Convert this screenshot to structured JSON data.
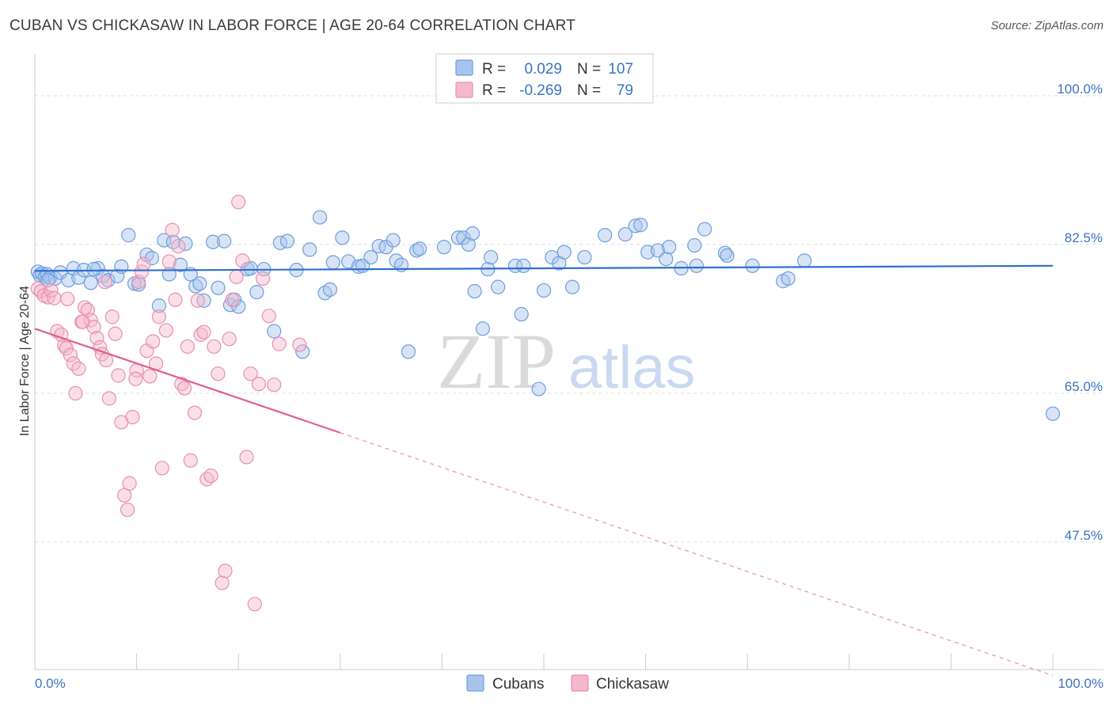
{
  "header": {
    "title": "CUBAN VS CHICKASAW IN LABOR FORCE | AGE 20-64 CORRELATION CHART",
    "source": "Source: ZipAtlas.com"
  },
  "watermark": {
    "zip": "ZIP",
    "atlas": "atlas"
  },
  "legend": {
    "r_label": "R =",
    "n_label": "N =",
    "rows": [
      {
        "r": "0.029",
        "n": "107",
        "color": "#a8c4ec"
      },
      {
        "r": "-0.269",
        "n": "79",
        "color": "#f5b8cb"
      }
    ]
  },
  "chart_data": {
    "type": "scatter",
    "ylabel": "In Labor Force | Age 20-64",
    "xlim": [
      0,
      100
    ],
    "ylim": [
      32.5,
      104
    ],
    "x_tick_labels": [
      "0.0%",
      "100.0%"
    ],
    "y_ticks": [
      {
        "value": 100.0,
        "label": "100.0%"
      },
      {
        "value": 82.5,
        "label": "82.5%"
      },
      {
        "value": 65.0,
        "label": "65.0%"
      },
      {
        "value": 47.5,
        "label": "47.5%"
      }
    ],
    "series": [
      {
        "name": "Cubans",
        "color": "#6c9ee0",
        "fill": "#a8c4ec",
        "trend": {
          "x0": 0,
          "y0": 79.4,
          "x1": 100,
          "y1": 80.0,
          "dashed_from": null
        },
        "points": [
          [
            0.3,
            79.3
          ],
          [
            0.5,
            78.9
          ],
          [
            0.7,
            79.1
          ],
          [
            1.0,
            78.7
          ],
          [
            1.2,
            79.0
          ],
          [
            1.5,
            78.6
          ],
          [
            2.0,
            78.5
          ],
          [
            2.5,
            79.2
          ],
          [
            3.3,
            78.3
          ],
          [
            3.8,
            79.7
          ],
          [
            4.3,
            78.6
          ],
          [
            4.8,
            79.5
          ],
          [
            5.5,
            78.0
          ],
          [
            6.2,
            79.7
          ],
          [
            6.7,
            78.8
          ],
          [
            7.2,
            78.3
          ],
          [
            8.1,
            78.8
          ],
          [
            8.5,
            79.9
          ],
          [
            9.2,
            83.6
          ],
          [
            9.8,
            77.9
          ],
          [
            10.2,
            77.8
          ],
          [
            11.0,
            81.3
          ],
          [
            11.5,
            80.9
          ],
          [
            12.2,
            75.3
          ],
          [
            12.7,
            83.0
          ],
          [
            13.2,
            79.0
          ],
          [
            13.6,
            82.8
          ],
          [
            14.3,
            80.1
          ],
          [
            14.8,
            82.6
          ],
          [
            15.3,
            79.0
          ],
          [
            15.8,
            77.6
          ],
          [
            16.2,
            77.9
          ],
          [
            16.6,
            75.9
          ],
          [
            17.5,
            82.8
          ],
          [
            18.0,
            77.4
          ],
          [
            18.6,
            82.9
          ],
          [
            19.2,
            75.4
          ],
          [
            19.6,
            76.0
          ],
          [
            20.0,
            75.2
          ],
          [
            20.9,
            79.6
          ],
          [
            21.2,
            79.7
          ],
          [
            21.8,
            76.9
          ],
          [
            22.5,
            79.6
          ],
          [
            23.5,
            72.3
          ],
          [
            24.1,
            82.7
          ],
          [
            24.8,
            82.9
          ],
          [
            25.7,
            79.5
          ],
          [
            26.3,
            69.9
          ],
          [
            27.0,
            81.9
          ],
          [
            28.0,
            85.7
          ],
          [
            28.5,
            76.8
          ],
          [
            29.0,
            77.2
          ],
          [
            29.3,
            80.4
          ],
          [
            30.2,
            83.3
          ],
          [
            30.8,
            80.5
          ],
          [
            31.8,
            79.9
          ],
          [
            32.2,
            80.0
          ],
          [
            33.0,
            81.0
          ],
          [
            33.8,
            82.3
          ],
          [
            34.5,
            82.2
          ],
          [
            35.2,
            83.0
          ],
          [
            35.5,
            80.6
          ],
          [
            36.0,
            80.1
          ],
          [
            36.7,
            69.9
          ],
          [
            37.5,
            81.8
          ],
          [
            37.8,
            82.0
          ],
          [
            40.2,
            82.2
          ],
          [
            41.6,
            83.3
          ],
          [
            42.1,
            83.3
          ],
          [
            42.6,
            82.5
          ],
          [
            43.0,
            83.8
          ],
          [
            43.2,
            77.0
          ],
          [
            44.0,
            72.6
          ],
          [
            44.5,
            79.6
          ],
          [
            44.8,
            81.0
          ],
          [
            45.5,
            77.5
          ],
          [
            47.2,
            80.0
          ],
          [
            47.8,
            74.3
          ],
          [
            48.0,
            80.0
          ],
          [
            49.5,
            65.5
          ],
          [
            50.0,
            77.1
          ],
          [
            50.8,
            81.0
          ],
          [
            51.5,
            80.3
          ],
          [
            52.0,
            81.6
          ],
          [
            52.8,
            77.5
          ],
          [
            54.0,
            81.0
          ],
          [
            56.0,
            83.6
          ],
          [
            58.0,
            83.7
          ],
          [
            59.0,
            84.7
          ],
          [
            59.5,
            84.8
          ],
          [
            60.2,
            81.6
          ],
          [
            61.2,
            81.8
          ],
          [
            62.0,
            80.8
          ],
          [
            62.3,
            82.2
          ],
          [
            63.5,
            79.7
          ],
          [
            64.8,
            82.4
          ],
          [
            65.0,
            80.0
          ],
          [
            65.8,
            84.3
          ],
          [
            67.8,
            81.5
          ],
          [
            68.0,
            81.2
          ],
          [
            70.5,
            80.0
          ],
          [
            73.5,
            78.2
          ],
          [
            74.0,
            78.5
          ],
          [
            75.6,
            80.6
          ],
          [
            100.0,
            62.6
          ],
          [
            1.3,
            78.3
          ],
          [
            5.8,
            79.6
          ]
        ]
      },
      {
        "name": "Chickasaw",
        "color": "#e98fae",
        "fill": "#f5b8cb",
        "trend": {
          "x0": 0,
          "y0": 72.6,
          "x1": 100,
          "y1": 31.8,
          "dashed_from": 30.0
        },
        "points": [
          [
            0.3,
            77.3
          ],
          [
            0.6,
            77.0
          ],
          [
            0.9,
            76.5
          ],
          [
            1.3,
            76.3
          ],
          [
            1.6,
            77.1
          ],
          [
            1.9,
            76.2
          ],
          [
            2.2,
            72.3
          ],
          [
            2.6,
            71.9
          ],
          [
            2.9,
            70.6
          ],
          [
            3.1,
            70.3
          ],
          [
            3.5,
            69.5
          ],
          [
            3.8,
            68.5
          ],
          [
            4.0,
            65.0
          ],
          [
            4.3,
            67.9
          ],
          [
            4.6,
            73.4
          ],
          [
            4.9,
            75.1
          ],
          [
            5.2,
            74.8
          ],
          [
            5.5,
            73.6
          ],
          [
            5.8,
            72.8
          ],
          [
            6.1,
            71.5
          ],
          [
            6.4,
            70.4
          ],
          [
            6.6,
            69.6
          ],
          [
            7.0,
            68.9
          ],
          [
            7.3,
            64.4
          ],
          [
            7.6,
            74.0
          ],
          [
            7.9,
            72.0
          ],
          [
            8.2,
            67.1
          ],
          [
            8.5,
            61.6
          ],
          [
            8.8,
            53.0
          ],
          [
            9.1,
            51.3
          ],
          [
            9.3,
            54.4
          ],
          [
            9.6,
            62.2
          ],
          [
            10.0,
            67.7
          ],
          [
            10.2,
            78.1
          ],
          [
            10.5,
            79.3
          ],
          [
            10.7,
            80.2
          ],
          [
            11.0,
            70.0
          ],
          [
            11.3,
            67.0
          ],
          [
            11.6,
            71.1
          ],
          [
            11.9,
            68.5
          ],
          [
            12.2,
            74.0
          ],
          [
            12.5,
            56.2
          ],
          [
            12.9,
            72.4
          ],
          [
            13.2,
            80.5
          ],
          [
            13.5,
            84.2
          ],
          [
            13.8,
            76.0
          ],
          [
            14.1,
            82.3
          ],
          [
            14.4,
            66.1
          ],
          [
            14.7,
            65.6
          ],
          [
            15.0,
            70.5
          ],
          [
            15.3,
            57.1
          ],
          [
            15.7,
            62.7
          ],
          [
            16.0,
            75.9
          ],
          [
            16.3,
            71.9
          ],
          [
            16.6,
            72.2
          ],
          [
            16.9,
            54.9
          ],
          [
            17.3,
            55.3
          ],
          [
            17.6,
            70.5
          ],
          [
            18.0,
            67.3
          ],
          [
            18.4,
            42.7
          ],
          [
            18.7,
            44.1
          ],
          [
            19.1,
            71.4
          ],
          [
            19.4,
            76.0
          ],
          [
            19.8,
            78.7
          ],
          [
            20.0,
            87.5
          ],
          [
            20.4,
            80.6
          ],
          [
            20.8,
            57.5
          ],
          [
            21.2,
            67.3
          ],
          [
            21.6,
            40.2
          ],
          [
            22.0,
            66.1
          ],
          [
            22.4,
            78.5
          ],
          [
            23.0,
            74.1
          ],
          [
            23.5,
            66.0
          ],
          [
            24.0,
            70.8
          ],
          [
            26.0,
            70.7
          ],
          [
            4.7,
            73.4
          ],
          [
            6.9,
            78.1
          ],
          [
            3.2,
            76.1
          ],
          [
            9.9,
            66.7
          ]
        ]
      }
    ],
    "grid": true,
    "legend_position": "top-center"
  }
}
